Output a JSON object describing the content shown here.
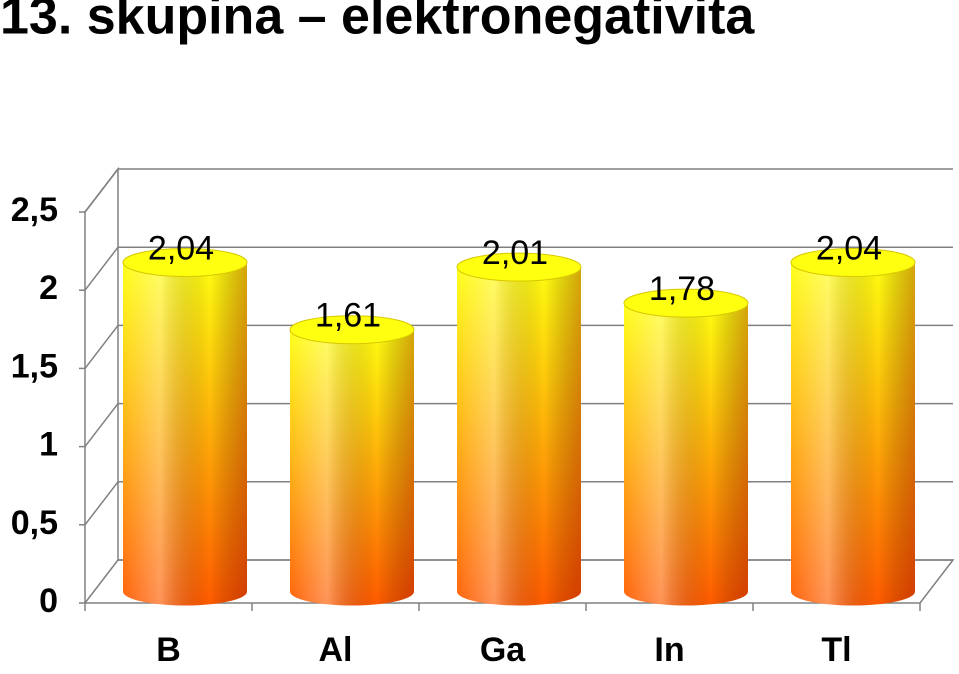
{
  "chart_data": {
    "type": "bar3d",
    "title": "13. skupina – elektronegativita",
    "categories": [
      "B",
      "Al",
      "Ga",
      "In",
      "Tl"
    ],
    "values": [
      2.04,
      1.61,
      2.01,
      1.78,
      2.04
    ],
    "value_labels": [
      "2,04",
      "1,61",
      "2,01",
      "1,78",
      "2,04"
    ],
    "colors": [
      "#ffff10",
      "#ff5a00"
    ],
    "ylim": [
      0,
      2.5
    ],
    "yticks": [
      0,
      {
        "value": 0.5,
        "label": "0,5"
      },
      1,
      {
        "value": 1.5,
        "label": "1,5"
      },
      2,
      {
        "value": 2.5,
        "label": "2,5"
      }
    ],
    "grid": true
  }
}
